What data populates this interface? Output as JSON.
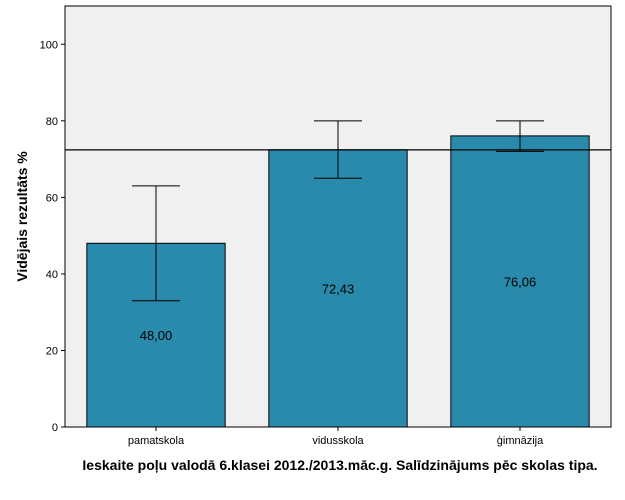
{
  "chart_data": {
    "type": "bar",
    "categories": [
      "pamatskola",
      "vidusskola",
      "ģimnāzija"
    ],
    "values": [
      48.0,
      72.43,
      76.06
    ],
    "value_labels": [
      "48,00",
      "72,43",
      "76,06"
    ],
    "error_bars": [
      {
        "low": 33,
        "high": 63
      },
      {
        "low": 65,
        "high": 80
      },
      {
        "low": 72,
        "high": 80
      }
    ],
    "reference_line": 72.4,
    "ylabel": "Vidējais rezultāts %",
    "ylim": [
      0,
      110
    ],
    "yticks": [
      0,
      20,
      40,
      60,
      80,
      100
    ],
    "caption": "Ieskaite poļu valodā 6.klasei 2012./2013.māc.g. Salīdzinājums pēc skolas tipa.",
    "bar_color": "#2a8aab",
    "plot_background": "#f0f0f0",
    "grid": false
  }
}
